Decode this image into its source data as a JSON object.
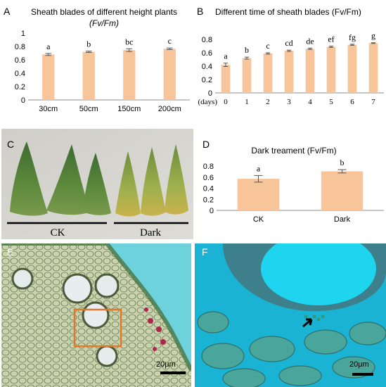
{
  "panels": {
    "A": {
      "letter": "A",
      "title_line1": "Sheath blades of different height plants",
      "title_line2": "(Fv/Fm)"
    },
    "B": {
      "letter": "B",
      "title": "Different time of sheath blades (Fv/Fm)"
    },
    "C": {
      "letter": "C",
      "label_ck": "CK",
      "label_dark": "Dark"
    },
    "D": {
      "letter": "D",
      "title": "Dark treament (Fv/Fm)"
    },
    "E": {
      "letter": "E",
      "scalebar": "20μm"
    },
    "F": {
      "letter": "F",
      "scalebar": "20μm"
    }
  },
  "chart_data": [
    {
      "panel": "A",
      "type": "bar",
      "categories": [
        "30cm",
        "50cm",
        "150cm",
        "200cm"
      ],
      "values": [
        0.68,
        0.72,
        0.745,
        0.765
      ],
      "errors": [
        0.015,
        0.01,
        0.02,
        0.012
      ],
      "letters": [
        "a",
        "b",
        "bc",
        "c"
      ],
      "ylim": [
        0,
        1
      ],
      "yticks": [
        0,
        0.2,
        0.4,
        0.6,
        0.8,
        1
      ],
      "ytick_labels": [
        "0",
        "0.2",
        "0.4",
        "0.6",
        "0.8",
        "1"
      ],
      "color": "#F8C499"
    },
    {
      "panel": "B",
      "type": "bar",
      "x_prefix": "(days)",
      "categories": [
        "0",
        "1",
        "2",
        "3",
        "4",
        "5",
        "6",
        "7"
      ],
      "values": [
        0.42,
        0.52,
        0.59,
        0.63,
        0.66,
        0.69,
        0.72,
        0.745
      ],
      "errors": [
        0.025,
        0.015,
        0.01,
        0.01,
        0.01,
        0.01,
        0.008,
        0.006
      ],
      "letters": [
        "a",
        "b",
        "c",
        "cd",
        "de",
        "ef",
        "fg",
        "g"
      ],
      "ylim": [
        0,
        0.8
      ],
      "yticks": [
        0,
        0.2,
        0.4,
        0.6,
        0.8
      ],
      "ytick_labels": [
        "0",
        "0.2",
        "0.4",
        "0.6",
        "0.8"
      ],
      "color": "#F8C499"
    },
    {
      "panel": "D",
      "type": "bar",
      "categories": [
        "CK",
        "Dark"
      ],
      "values": [
        0.57,
        0.705
      ],
      "errors": [
        0.06,
        0.03
      ],
      "letters": [
        "a",
        "b"
      ],
      "ylim": [
        0,
        0.8
      ],
      "yticks": [
        0,
        0.2,
        0.4,
        0.6,
        0.8
      ],
      "ytick_labels": [
        "0",
        "0.2",
        "0.4",
        "0.6",
        "0.8"
      ],
      "color": "#F8C499"
    }
  ]
}
